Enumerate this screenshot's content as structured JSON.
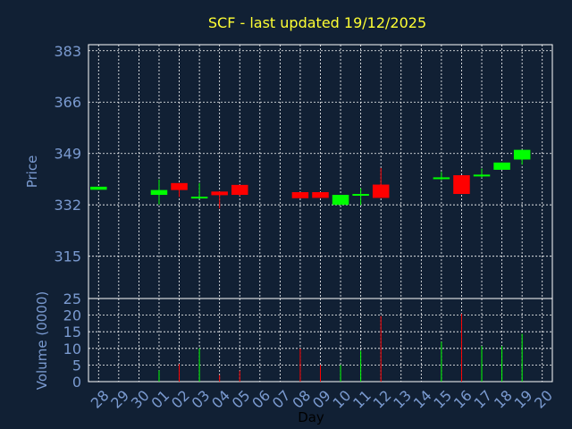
{
  "chart_data": {
    "type": "candlestick",
    "title": "SCF - last updated 19/12/2025",
    "xlabel": "Day",
    "ylabel": "Price",
    "volume_ylabel": "Volume (0000)",
    "price_ticks": [
      "383",
      "366",
      "349",
      "332",
      "315"
    ],
    "price_tick_values": [
      383,
      366,
      349,
      332,
      315
    ],
    "price_ylim": [
      301,
      385
    ],
    "volume_ticks": [
      "25",
      "20",
      "15",
      "10",
      "5",
      "0"
    ],
    "volume_tick_values": [
      25,
      20,
      15,
      10,
      5,
      0
    ],
    "volume_ylim": [
      0,
      25
    ],
    "grid": true,
    "colors": {
      "background": "#112034",
      "grid": "#ffffff",
      "up": "#00ff00",
      "down": "#ff0000",
      "title": "#ffff33",
      "axis_text": "#7a9ad0"
    },
    "days": [
      "28",
      "29",
      "30",
      "01",
      "02",
      "03",
      "04",
      "05",
      "06",
      "07",
      "08",
      "09",
      "10",
      "11",
      "12",
      "13",
      "14",
      "15",
      "16",
      "17",
      "18",
      "19",
      "20"
    ],
    "candles": [
      {
        "day": "28",
        "open": 337,
        "close": 338,
        "high": 338,
        "low": 337,
        "volume": 0
      },
      {
        "day": "01",
        "open": 335.3,
        "close": 336.9,
        "high": 340.4,
        "low": 332.1,
        "volume": 3.4
      },
      {
        "day": "02",
        "open": 339.2,
        "close": 336.9,
        "high": 339.2,
        "low": 334.6,
        "volume": 5.3
      },
      {
        "day": "03",
        "open": 334.3,
        "close": 334.7,
        "high": 339.2,
        "low": 334.0,
        "volume": 10.0
      },
      {
        "day": "04",
        "open": 336.4,
        "close": 335.2,
        "high": 336.4,
        "low": 330.8,
        "volume": 2.0
      },
      {
        "day": "05",
        "open": 338.6,
        "close": 335.3,
        "high": 338.6,
        "low": 334.9,
        "volume": 3.3
      },
      {
        "day": "08",
        "open": 336.2,
        "close": 334.2,
        "high": 336.2,
        "low": 334.2,
        "volume": 10.0
      },
      {
        "day": "09",
        "open": 336.2,
        "close": 334.3,
        "high": 336.2,
        "low": 334.3,
        "volume": 5.0
      },
      {
        "day": "10",
        "open": 332.0,
        "close": 335.3,
        "high": 335.3,
        "low": 332.0,
        "volume": 5.0
      },
      {
        "day": "11",
        "open": 335.2,
        "close": 335.6,
        "high": 337.5,
        "low": 331.9,
        "volume": 9.3
      },
      {
        "day": "12",
        "open": 338.7,
        "close": 334.3,
        "high": 344.2,
        "low": 334.3,
        "volume": 19.7
      },
      {
        "day": "15",
        "open": 340.5,
        "close": 341.1,
        "high": 342.9,
        "low": 340.2,
        "volume": 12.0
      },
      {
        "day": "16",
        "open": 341.8,
        "close": 335.6,
        "high": 341.8,
        "low": 335.6,
        "volume": 20.4
      },
      {
        "day": "17",
        "open": 341.6,
        "close": 342.0,
        "high": 344.0,
        "low": 341.0,
        "volume": 10.7
      },
      {
        "day": "18",
        "open": 343.6,
        "close": 346.0,
        "high": 346.0,
        "low": 343.6,
        "volume": 10.7
      },
      {
        "day": "19",
        "open": 347.0,
        "close": 350.2,
        "high": 350.2,
        "low": 345.3,
        "volume": 14.4
      }
    ]
  }
}
